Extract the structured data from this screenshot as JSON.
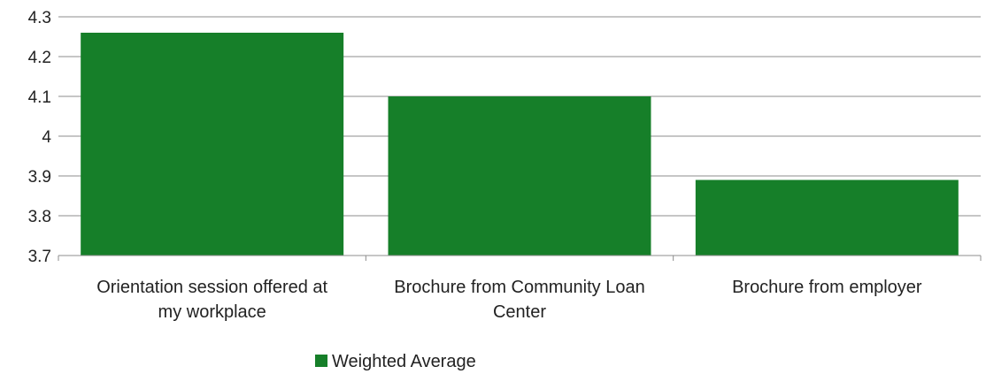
{
  "chart_data": {
    "type": "bar",
    "title": "",
    "xlabel": "",
    "ylabel": "",
    "categories": [
      [
        "Orientation session offered at",
        "my workplace"
      ],
      [
        "Brochure from Community Loan",
        "Center"
      ],
      [
        "Brochure from employer"
      ]
    ],
    "series": [
      {
        "name": "Weighted Average",
        "color": "#167f29",
        "values": [
          4.26,
          4.1,
          3.89
        ]
      }
    ],
    "ylim": [
      3.7,
      4.3
    ],
    "yticks": [
      "3.7",
      "3.8",
      "3.9",
      "4",
      "4.1",
      "4.2",
      "4.3"
    ],
    "grid": true,
    "legend_position": "bottom"
  }
}
